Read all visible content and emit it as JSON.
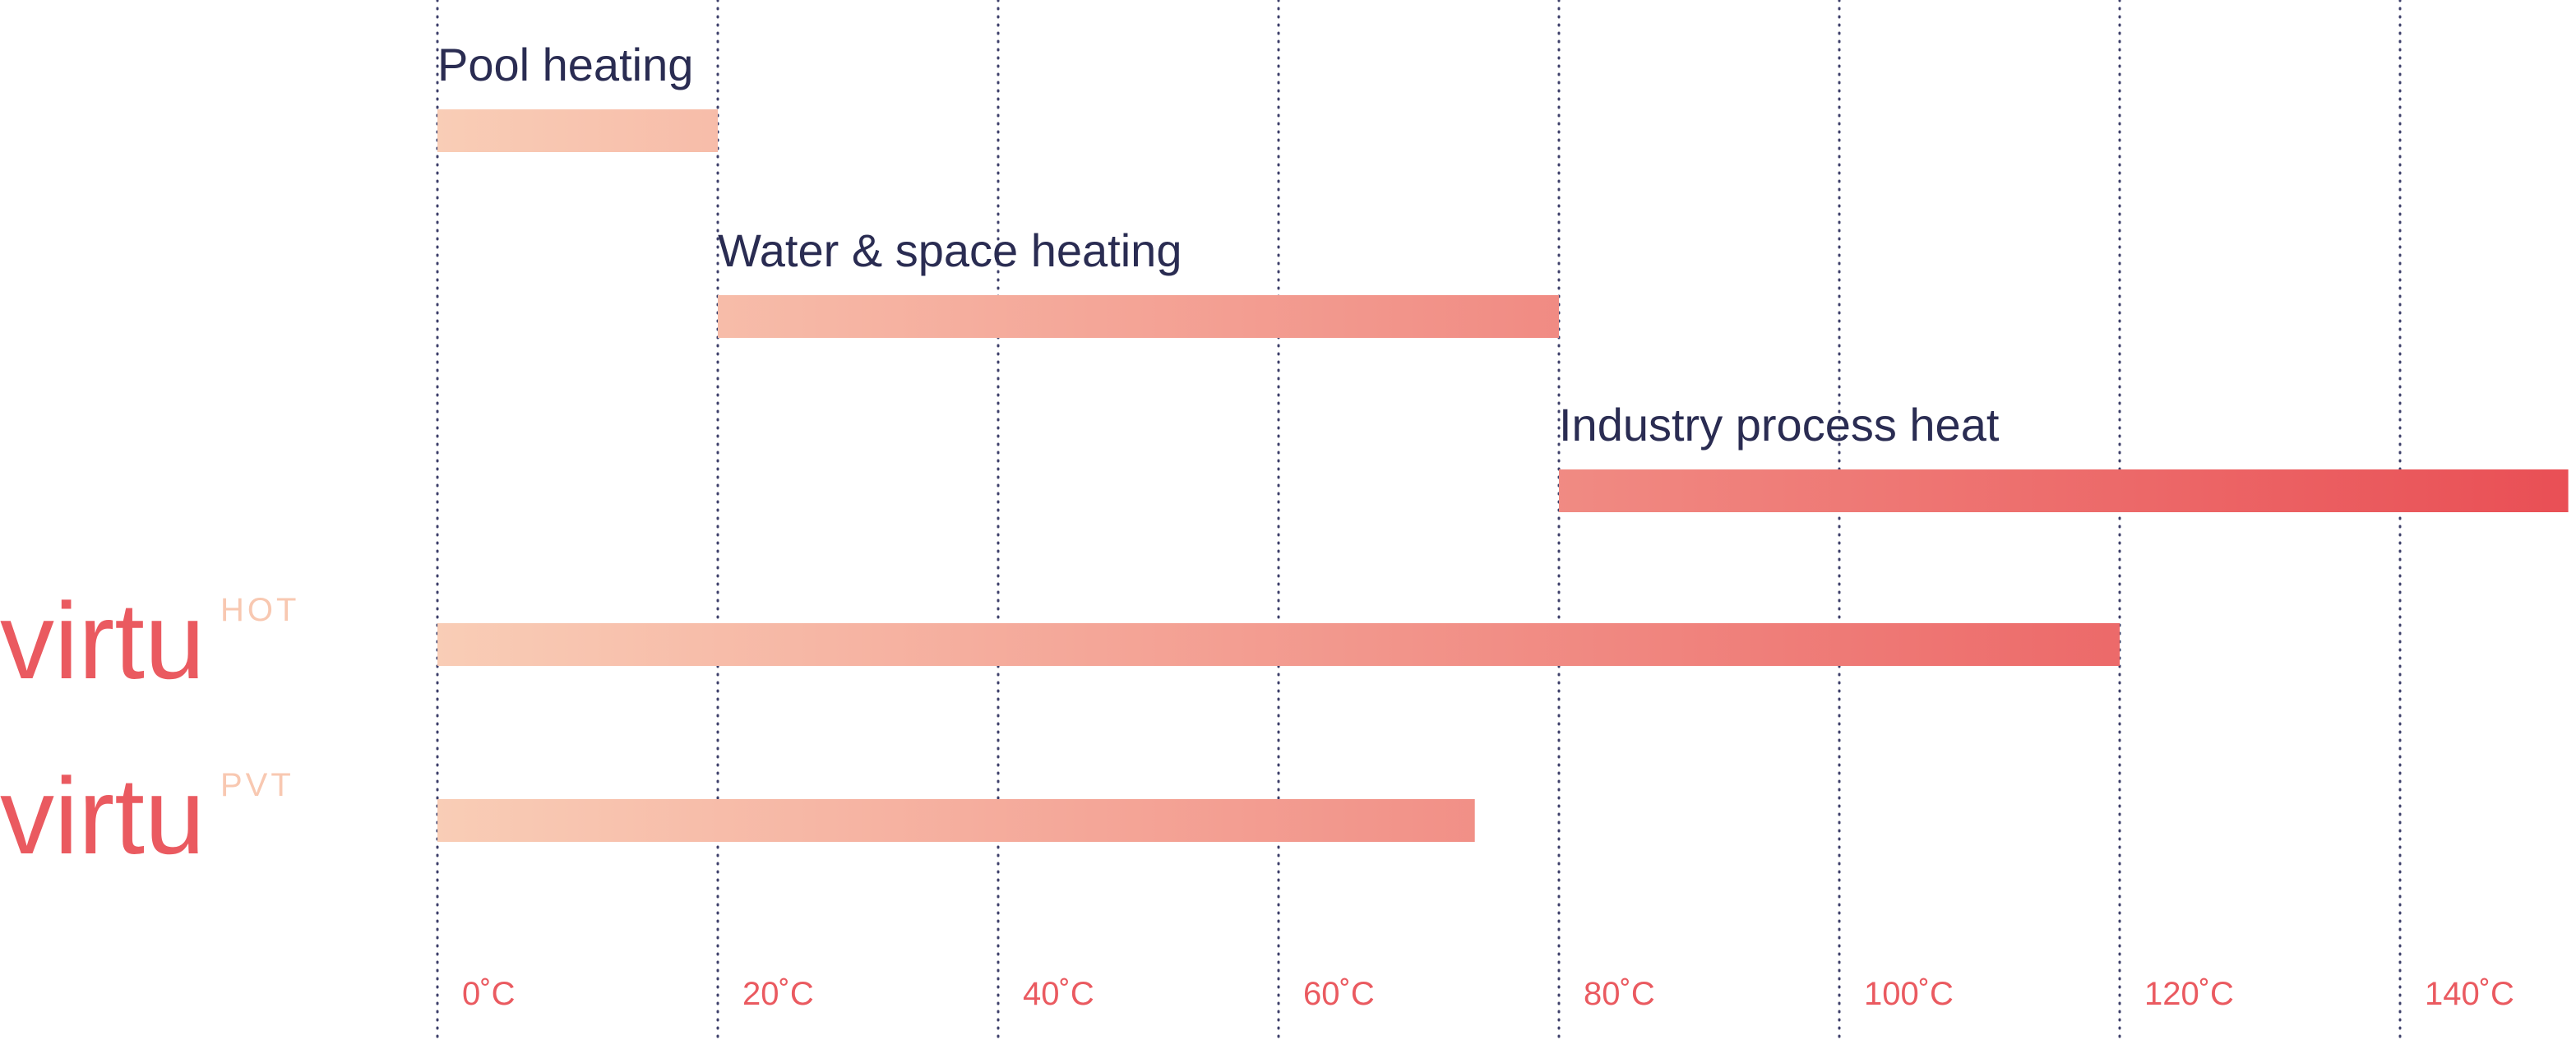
{
  "chart_data": {
    "type": "bar",
    "orientation": "horizontal",
    "xlim": [
      0,
      152
    ],
    "x_ticks": [
      0,
      20,
      40,
      60,
      80,
      100,
      120,
      140
    ],
    "x_tick_labels": [
      "0˚C",
      "20˚C",
      "40˚C",
      "60˚C",
      "80˚C",
      "100˚C",
      "120˚C",
      "140˚C"
    ],
    "grid": "vertical dotted",
    "bars": [
      {
        "label": "Pool heating",
        "start": 0,
        "end": 20
      },
      {
        "label": "Water & space heating",
        "start": 20,
        "end": 80
      },
      {
        "label": "Industry process heat",
        "start": 80,
        "end": 152
      },
      {
        "label": "virtu",
        "superscript": "HOT",
        "start": 0,
        "end": 120
      },
      {
        "label": "virtu",
        "superscript": "PVT",
        "start": 0,
        "end": 74
      }
    ],
    "colors": {
      "gradient_start": "#f9cdb6",
      "gradient_end": "#e94f55",
      "title_text": "#2a2c52",
      "accent": "#ea5a60",
      "gridline": "#3d3f6a"
    }
  }
}
